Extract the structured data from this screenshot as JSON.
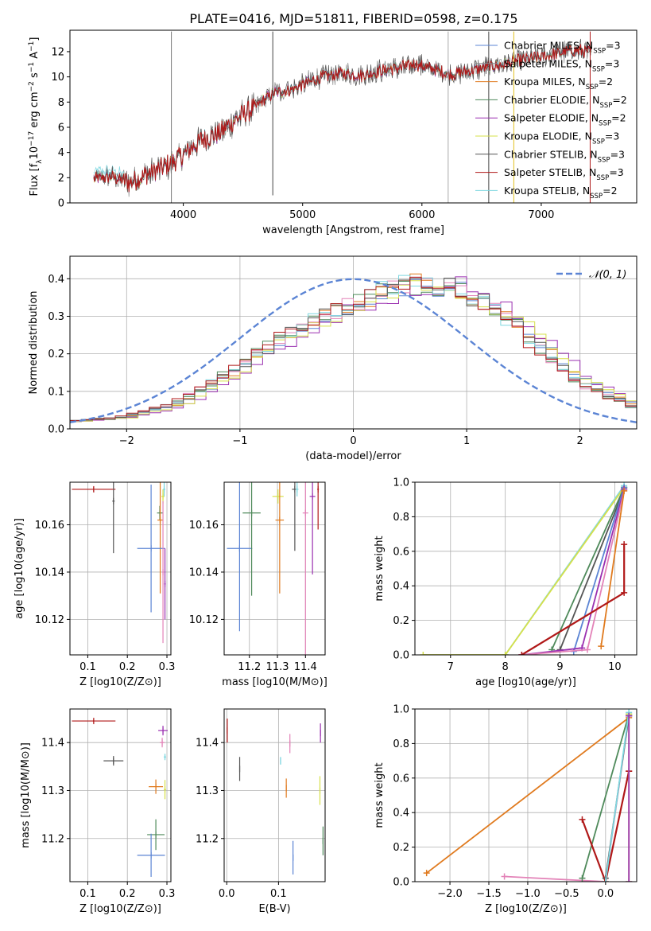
{
  "title": "PLATE=0416, MJD=51811, FIBERID=0598, z=0.175",
  "colors": {
    "Chabrier MILES": "#5b84d4",
    "Salpeter MILES": "#8b8b8b",
    "Kroupa MILES": "#e07a1e",
    "Chabrier ELODIE": "#4f8a5b",
    "Salpeter ELODIE": "#9a2fb0",
    "Kroupa ELODIE": "#d6e04a",
    "Chabrier STELIB": "#555555",
    "Salpeter STELIB": "#b01818",
    "Kroupa STELIB": "#7fd7e0",
    "pink": "#e383b8",
    "gauss": "#5b84d4"
  },
  "chart_data": [
    {
      "type": "line",
      "xlabel": "wavelength [Angstrom, rest frame]",
      "ylabel": "Flux [f_λ 10^-17 erg cm^-2 s^-1 A^-1]",
      "xlim": [
        3050,
        7800
      ],
      "ylim": [
        0,
        13.7
      ],
      "xticks": [
        4000,
        5000,
        6000,
        7000
      ],
      "yticks": [
        0,
        2,
        4,
        6,
        8,
        10,
        12
      ],
      "legend_position": "upper right",
      "legend": [
        {
          "name": "Chabrier MILES",
          "n": "3"
        },
        {
          "name": "Salpeter MILES",
          "n": "3"
        },
        {
          "name": "Kroupa MILES",
          "n": "2"
        },
        {
          "name": "Chabrier ELODIE",
          "n": "2"
        },
        {
          "name": "Salpeter ELODIE",
          "n": "2"
        },
        {
          "name": "Kroupa ELODIE",
          "n": "3"
        },
        {
          "name": "Chabrier STELIB",
          "n": "3"
        },
        {
          "name": "Salpeter STELIB",
          "n": "3"
        },
        {
          "name": "Kroupa STELIB",
          "n": "2"
        }
      ],
      "spectrum_continuum": {
        "x": [
          3250,
          3400,
          3550,
          3700,
          3850,
          4000,
          4150,
          4300,
          4450,
          4600,
          4750,
          4900,
          5050,
          5200,
          5350,
          5500,
          5650,
          5800,
          5950,
          6100,
          6250,
          6400,
          6550,
          6700,
          6850,
          7000,
          7150,
          7300,
          7420
        ],
        "y": [
          1.9,
          2.1,
          1.6,
          2.3,
          2.9,
          3.8,
          5.0,
          5.5,
          6.7,
          7.6,
          8.7,
          9.0,
          9.6,
          10.1,
          10.3,
          10.1,
          10.5,
          10.7,
          11.0,
          10.6,
          10.2,
          10.5,
          10.8,
          11.0,
          11.4,
          11.6,
          11.9,
          12.1,
          12.0
        ]
      }
    },
    {
      "type": "step",
      "xlabel": "(data-model)/error",
      "ylabel": "Normed distribution",
      "xlim": [
        -2.5,
        2.5
      ],
      "ylim": [
        0,
        0.46
      ],
      "xticks": [
        -2,
        -1,
        0,
        1,
        2
      ],
      "yticks": [
        0.0,
        0.1,
        0.2,
        0.3,
        0.4
      ],
      "legend": "𝒩(0, 1)",
      "histogram_envelope": {
        "x": [
          -2.5,
          -2.0,
          -1.5,
          -1.0,
          -0.5,
          0.0,
          0.5,
          1.0,
          1.5,
          2.0,
          2.5
        ],
        "y": [
          0.02,
          0.03,
          0.07,
          0.16,
          0.26,
          0.33,
          0.39,
          0.37,
          0.27,
          0.13,
          0.06
        ]
      }
    },
    {
      "type": "scatter",
      "xlabel": "Z [log10(Z/Z⊙)]",
      "ylabel": "age  [log10(age/yr)]",
      "xlim": [
        0.055,
        0.31
      ],
      "ylim": [
        10.105,
        10.178
      ],
      "xticks": [
        0.1,
        0.2,
        0.3
      ],
      "yticks": [
        10.12,
        10.14,
        10.16
      ],
      "points": [
        {
          "c": "Salpeter STELIB",
          "x": 0.115,
          "y": 10.175,
          "xerr": 0.055,
          "yerr": 0.001
        },
        {
          "c": "Chabrier STELIB",
          "x": 0.165,
          "y": 10.17,
          "xerr": 0.003,
          "yerr": 0.022
        },
        {
          "c": "Kroupa ELODIE",
          "x": 0.29,
          "y": 10.172,
          "xerr": 0.004,
          "yerr": 0.003
        },
        {
          "c": "Kroupa STELIB",
          "x": 0.293,
          "y": 10.175,
          "xerr": 0.003,
          "yerr": 0.003
        },
        {
          "c": "Chabrier ELODIE",
          "x": 0.282,
          "y": 10.165,
          "xerr": 0.007,
          "yerr": 0.003
        },
        {
          "c": "Kroupa MILES",
          "x": 0.283,
          "y": 10.162,
          "xerr": 0.007,
          "yerr": 0.031
        },
        {
          "c": "Chabrier MILES",
          "x": 0.26,
          "y": 10.15,
          "xerr": 0.035,
          "yerr": 0.027
        },
        {
          "c": "pink",
          "x": 0.29,
          "y": 10.14,
          "xerr": 0.002,
          "yerr": 0.03
        },
        {
          "c": "Salpeter ELODIE",
          "x": 0.295,
          "y": 10.135,
          "xerr": 0.002,
          "yerr": 0.015
        }
      ]
    },
    {
      "type": "scatter",
      "xlabel": "mass [log10(M/M⊙)]",
      "ylabel": "",
      "xlim": [
        11.11,
        11.47
      ],
      "ylim": [
        10.105,
        10.178
      ],
      "xticks": [
        11.2,
        11.3,
        11.4
      ],
      "yticks": [
        10.12,
        10.14,
        10.16
      ],
      "points": [
        {
          "c": "Chabrier MILES",
          "x": 11.165,
          "y": 10.15,
          "xerr": 0.045,
          "yerr": 0.035
        },
        {
          "c": "Chabrier ELODIE",
          "x": 11.208,
          "y": 10.165,
          "xerr": 0.032,
          "yerr": 0.035
        },
        {
          "c": "Kroupa ELODIE",
          "x": 11.302,
          "y": 10.172,
          "xerr": 0.02,
          "yerr": 0.003
        },
        {
          "c": "Kroupa MILES",
          "x": 11.308,
          "y": 10.162,
          "xerr": 0.015,
          "yerr": 0.031
        },
        {
          "c": "Chabrier STELIB",
          "x": 11.362,
          "y": 10.175,
          "xerr": 0.01,
          "yerr": 0.026
        },
        {
          "c": "pink",
          "x": 11.4,
          "y": 10.165,
          "xerr": 0.01,
          "yerr": 0.062
        },
        {
          "c": "Kroupa STELIB",
          "x": 11.37,
          "y": 10.175,
          "xerr": 0.005,
          "yerr": 0.003
        },
        {
          "c": "Salpeter ELODIE",
          "x": 11.425,
          "y": 10.172,
          "xerr": 0.01,
          "yerr": 0.033
        },
        {
          "c": "Salpeter STELIB",
          "x": 11.445,
          "y": 10.175,
          "xerr": 0.003,
          "yerr": 0.017
        }
      ]
    },
    {
      "type": "line",
      "xlabel": "age  [log10(age/yr)]",
      "ylabel": "mass weight",
      "xlim": [
        6.35,
        10.4
      ],
      "ylim": [
        0,
        1.0
      ],
      "xticks": [
        7,
        8,
        9,
        10
      ],
      "yticks": [
        0.0,
        0.2,
        0.4,
        0.6,
        0.8,
        1.0
      ],
      "series": [
        {
          "c": "Kroupa STELIB",
          "x": [
            8.0,
            10.17
          ],
          "y": [
            0.0,
            0.98
          ]
        },
        {
          "c": "Kroupa ELODIE",
          "x": [
            6.5,
            8.0,
            10.17
          ],
          "y": [
            0.0,
            0.0,
            0.97
          ]
        },
        {
          "c": "Chabrier ELODIE",
          "x": [
            8.85,
            10.17
          ],
          "y": [
            0.03,
            0.97
          ]
        },
        {
          "c": "Chabrier STELIB",
          "x": [
            9.0,
            10.17
          ],
          "y": [
            0.03,
            0.96
          ]
        },
        {
          "c": "Chabrier MILES",
          "x": [
            9.25,
            10.17
          ],
          "y": [
            0.02,
            0.97
          ]
        },
        {
          "c": "Salpeter ELODIE",
          "x": [
            8.3,
            9.4,
            10.17
          ],
          "y": [
            0.0,
            0.04,
            0.96
          ]
        },
        {
          "c": "pink",
          "x": [
            8.3,
            9.5,
            10.17
          ],
          "y": [
            0.0,
            0.03,
            0.95
          ]
        },
        {
          "c": "Kroupa MILES",
          "x": [
            9.75,
            10.17
          ],
          "y": [
            0.05,
            0.95
          ]
        },
        {
          "c": "Salpeter STELIB",
          "x": [
            8.3,
            10.17,
            10.17
          ],
          "y": [
            0.0,
            0.36,
            0.64
          ]
        }
      ]
    },
    {
      "type": "scatter",
      "xlabel": "Z [log10(Z/Z⊙)]",
      "ylabel": "mass [log10(M/M⊙)]",
      "xlim": [
        0.055,
        0.31
      ],
      "ylim": [
        11.11,
        11.47
      ],
      "xticks": [
        0.1,
        0.2,
        0.3
      ],
      "yticks": [
        11.2,
        11.3,
        11.4
      ],
      "points": [
        {
          "c": "Salpeter STELIB",
          "x": 0.115,
          "y": 11.445,
          "xerr": 0.055,
          "yerr": 0.003
        },
        {
          "c": "Chabrier STELIB",
          "x": 0.165,
          "y": 11.362,
          "xerr": 0.025,
          "yerr": 0.01
        },
        {
          "c": "Salpeter ELODIE",
          "x": 0.29,
          "y": 11.425,
          "xerr": 0.012,
          "yerr": 0.01
        },
        {
          "c": "pink",
          "x": 0.288,
          "y": 11.4,
          "xerr": 0.006,
          "yerr": 0.01
        },
        {
          "c": "Kroupa STELIB",
          "x": 0.295,
          "y": 11.37,
          "xerr": 0.003,
          "yerr": 0.005
        },
        {
          "c": "Kroupa MILES",
          "x": 0.272,
          "y": 11.308,
          "xerr": 0.018,
          "yerr": 0.015
        },
        {
          "c": "Kroupa ELODIE",
          "x": 0.295,
          "y": 11.302,
          "xerr": 0.003,
          "yerr": 0.02
        },
        {
          "c": "Chabrier ELODIE",
          "x": 0.272,
          "y": 11.208,
          "xerr": 0.022,
          "yerr": 0.032
        },
        {
          "c": "Chabrier MILES",
          "x": 0.26,
          "y": 11.165,
          "xerr": 0.035,
          "yerr": 0.045
        }
      ]
    },
    {
      "type": "scatter",
      "xlabel": "E(B-V)",
      "ylabel": "",
      "xlim": [
        -0.005,
        0.19
      ],
      "ylim": [
        11.11,
        11.47
      ],
      "xticks": [
        0.0,
        0.1
      ],
      "yticks": [
        11.2,
        11.3,
        11.4
      ],
      "points": [
        {
          "c": "Salpeter STELIB",
          "x": 0.001,
          "y": 11.425,
          "xerr": 0,
          "yerr": 0.025
        },
        {
          "c": "Chabrier STELIB",
          "x": 0.025,
          "y": 11.345,
          "xerr": 0,
          "yerr": 0.025
        },
        {
          "c": "Kroupa STELIB",
          "x": 0.104,
          "y": 11.362,
          "xerr": 0,
          "yerr": 0.008
        },
        {
          "c": "Kroupa MILES",
          "x": 0.115,
          "y": 11.305,
          "xerr": 0,
          "yerr": 0.02
        },
        {
          "c": "Chabrier MILES",
          "x": 0.128,
          "y": 11.16,
          "xerr": 0,
          "yerr": 0.035
        },
        {
          "c": "pink",
          "x": 0.122,
          "y": 11.398,
          "xerr": 0,
          "yerr": 0.02
        },
        {
          "c": "Salpeter ELODIE",
          "x": 0.181,
          "y": 11.42,
          "xerr": 0,
          "yerr": 0.02
        },
        {
          "c": "Kroupa ELODIE",
          "x": 0.18,
          "y": 11.3,
          "xerr": 0,
          "yerr": 0.03
        },
        {
          "c": "Chabrier ELODIE",
          "x": 0.186,
          "y": 11.195,
          "xerr": 0,
          "yerr": 0.03
        }
      ]
    },
    {
      "type": "line",
      "xlabel": "Z [log10(Z/Z⊙)]",
      "ylabel": "mass weight",
      "xlim": [
        -2.45,
        0.4
      ],
      "ylim": [
        0,
        1.0
      ],
      "xticks": [
        -2.0,
        -1.5,
        -1.0,
        -0.5,
        0.0
      ],
      "yticks": [
        0.0,
        0.2,
        0.4,
        0.6,
        0.8,
        1.0
      ],
      "series": [
        {
          "c": "Kroupa MILES",
          "x": [
            -2.3,
            0.3
          ],
          "y": [
            0.05,
            0.95
          ]
        },
        {
          "c": "pink",
          "x": [
            -1.3,
            0.0,
            0.3
          ],
          "y": [
            0.03,
            0.0,
            0.96
          ]
        },
        {
          "c": "Chabrier ELODIE",
          "x": [
            -0.3,
            0.3
          ],
          "y": [
            0.02,
            0.97
          ]
        },
        {
          "c": "Salpeter STELIB",
          "x": [
            -0.3,
            0.0,
            0.3,
            0.3
          ],
          "y": [
            0.36,
            0.0,
            0.64,
            0.64
          ]
        },
        {
          "c": "Chabrier STELIB",
          "x": [
            0.0,
            0.3
          ],
          "y": [
            0.02,
            0.96
          ]
        },
        {
          "c": "Kroupa ELODIE",
          "x": [
            0.3,
            0.3
          ],
          "y": [
            0.0,
            0.97
          ]
        },
        {
          "c": "Kroupa STELIB",
          "x": [
            0.0,
            0.3
          ],
          "y": [
            0.0,
            0.98
          ]
        },
        {
          "c": "Salpeter ELODIE",
          "x": [
            0.3,
            0.3
          ],
          "y": [
            0.0,
            0.96
          ]
        }
      ]
    }
  ]
}
